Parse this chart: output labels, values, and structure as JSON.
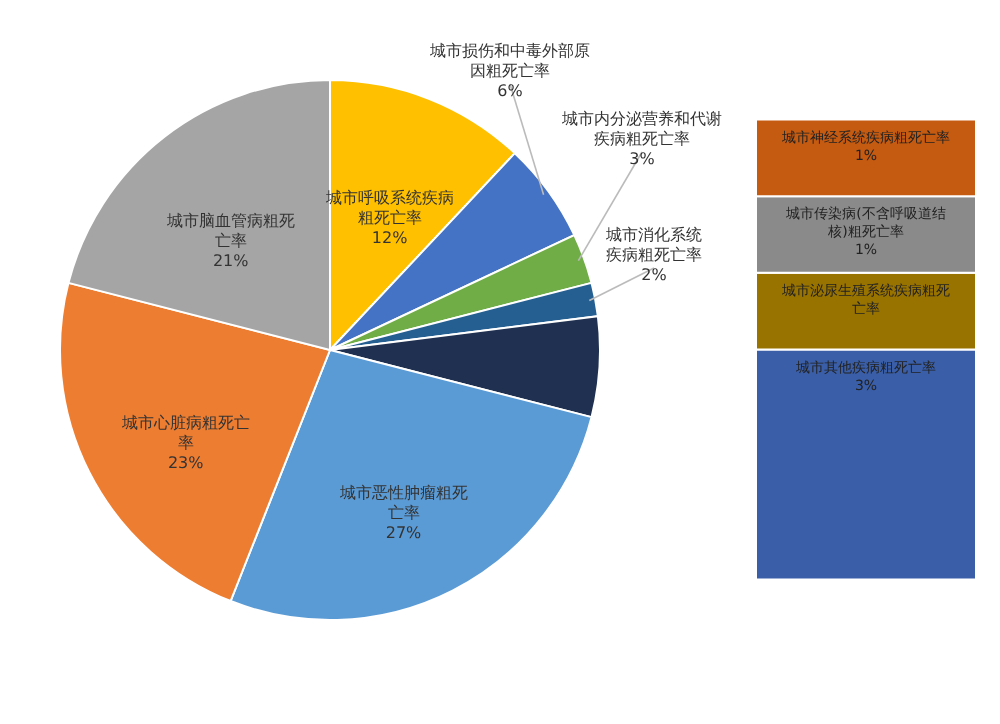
{
  "chart_data": [
    {
      "type": "pie",
      "categories": [
        "城市呼吸系统疾病粗死亡率",
        "城市损伤和中毒外部原因粗死亡率",
        "城市内分泌营养和代谢疾病粗死亡率",
        "城市消化系统疾病粗死亡率",
        null,
        "城市恶性肿瘤粗死亡率",
        "城市心脏病粗死亡率",
        "城市脑血管病粗死亡率"
      ],
      "values": [
        12,
        6,
        3,
        2,
        6,
        27,
        23,
        21
      ],
      "colors": [
        "#ffc000",
        "#4472c4",
        "#70ad47",
        "#255e91",
        "#1f3050",
        "#5b9bd5",
        "#ed7d31",
        "#a5a5a5"
      ],
      "value_labels": [
        "12%",
        "6%",
        "3%",
        "2%",
        null,
        "27%",
        "23%",
        "21%"
      ]
    },
    {
      "type": "bar",
      "stacked": true,
      "categories": [
        null
      ],
      "legend": false,
      "series": [
        {
          "name": "城市其他疾病粗死亡率",
          "color": "#3a5fa8",
          "values": [
            3
          ],
          "value_labels": [
            "3%"
          ]
        },
        {
          "name": "城市泌尿生殖系统疾病粗死亡率",
          "color": "#997300",
          "values": [
            1
          ],
          "value_labels": [
            null
          ]
        },
        {
          "name": "城市传染病(不含呼吸道结核)粗死亡率",
          "color": "#8a8a8a",
          "values": [
            1
          ],
          "value_labels": [
            "1%"
          ]
        },
        {
          "name": "城市神经系统疾病粗死亡率",
          "color": "#c55a11",
          "values": [
            1
          ],
          "value_labels": [
            "1%"
          ]
        }
      ]
    }
  ]
}
